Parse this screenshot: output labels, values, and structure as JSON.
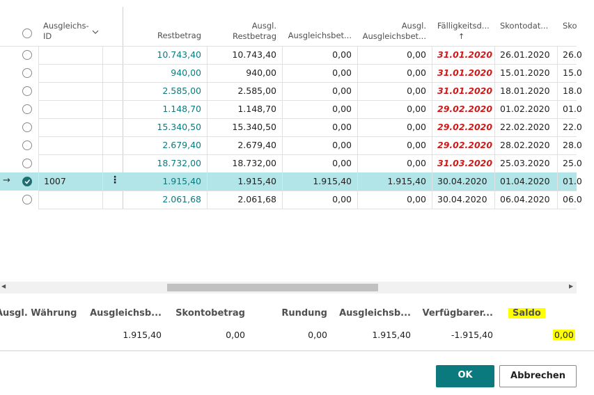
{
  "table": {
    "headers": [
      "Ausgleichs-ID",
      "Restbetrag",
      "Ausgl. Restbetrag",
      "Ausgleichsbet...",
      "Ausgl. Ausgleichsbet...",
      "Fälligkeitsd...",
      "Skontodat...",
      "Sko"
    ],
    "rows": [
      {
        "cells": [
          "10.743,40",
          "10.743,40",
          "0,00",
          "0,00",
          "31.01.2020",
          "26.01.2020",
          "26.0"
        ],
        "overdue": true
      },
      {
        "cells": [
          "940,00",
          "940,00",
          "0,00",
          "0,00",
          "31.01.2020",
          "15.01.2020",
          "15.0"
        ],
        "overdue": true
      },
      {
        "cells": [
          "2.585,00",
          "2.585,00",
          "0,00",
          "0,00",
          "31.01.2020",
          "18.01.2020",
          "18.0"
        ],
        "overdue": true
      },
      {
        "cells": [
          "1.148,70",
          "1.148,70",
          "0,00",
          "0,00",
          "29.02.2020",
          "01.02.2020",
          "01.0"
        ],
        "overdue": true
      },
      {
        "cells": [
          "15.340,50",
          "15.340,50",
          "0,00",
          "0,00",
          "29.02.2020",
          "22.02.2020",
          "22.0"
        ],
        "overdue": true
      },
      {
        "cells": [
          "2.679,40",
          "2.679,40",
          "0,00",
          "0,00",
          "29.02.2020",
          "28.02.2020",
          "28.0"
        ],
        "overdue": true
      },
      {
        "cells": [
          "18.732,00",
          "18.732,00",
          "0,00",
          "0,00",
          "31.03.2020",
          "25.03.2020",
          "25.0"
        ],
        "overdue": true
      },
      {
        "id": "1007",
        "selected": true,
        "cells": [
          "1.915,40",
          "1.915,40",
          "1.915,40",
          "1.915,40",
          "30.04.2020",
          "01.04.2020",
          "01.0"
        ],
        "overdue": false
      },
      {
        "cells": [
          "2.061,68",
          "2.061,68",
          "0,00",
          "0,00",
          "30.04.2020",
          "06.04.2020",
          "06.0"
        ],
        "overdue": false
      }
    ]
  },
  "summary": [
    {
      "label": "Ausgl. Währung"
    },
    {
      "label": "Ausgleichsb...",
      "value": "1.915,40"
    },
    {
      "label": "Skontobetrag",
      "value": "0,00"
    },
    {
      "label": "Rundung",
      "value": "0,00"
    },
    {
      "label": "Ausgleichsb...",
      "value": "1.915,40"
    },
    {
      "label": "Verfügbarer...",
      "value": "-1.915,40"
    },
    {
      "label": "Saldo",
      "value": "0,00",
      "highlight": true
    }
  ],
  "buttons": [
    "OK",
    "Abbrechen"
  ]
}
